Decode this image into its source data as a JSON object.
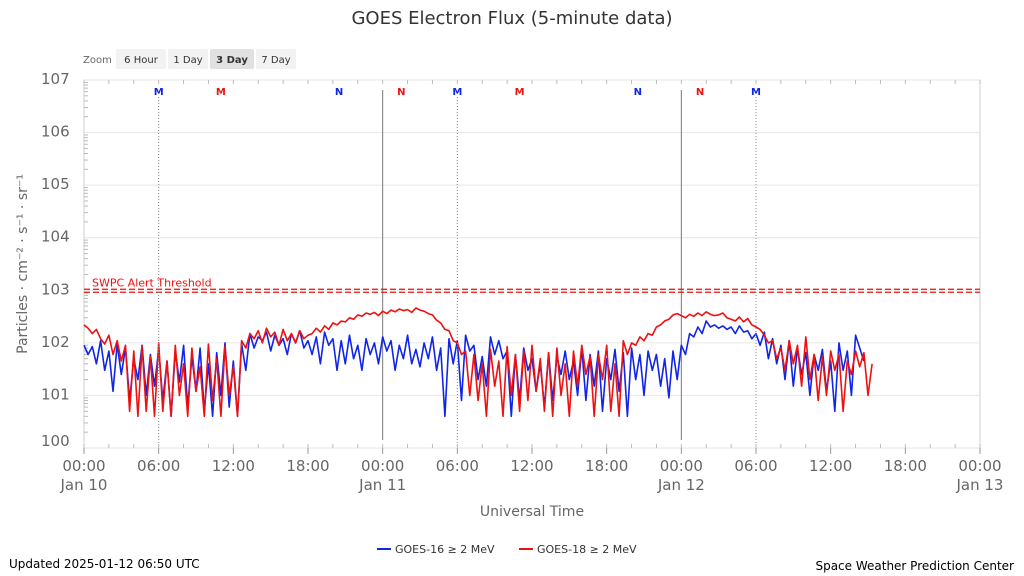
{
  "title": "GOES Electron Flux (5-minute data)",
  "zoom": {
    "label": "Zoom",
    "buttons": [
      "6 Hour",
      "1 Day",
      "3 Day",
      "7 Day"
    ],
    "active": "3 Day"
  },
  "footer": {
    "updated": "Updated 2025-01-12 06:50 UTC",
    "credit": "Space Weather Prediction Center"
  },
  "colors": {
    "goes16": "#1025e8",
    "goes18": "#ee1111",
    "threshold": "#ee1111"
  },
  "chart_data": {
    "type": "line",
    "title": "GOES Electron Flux (5-minute data)",
    "xlabel": "Universal Time",
    "ylabel": "Particles · cm⁻² · s⁻¹ · sr⁻¹",
    "y_scale": "log",
    "ylim": [
      1,
      10000000
    ],
    "y_tick_labels": [
      {
        "value": 1,
        "base": "10",
        "exp": "0"
      },
      {
        "value": 10,
        "base": "10",
        "exp": "1"
      },
      {
        "value": 100,
        "base": "10",
        "exp": "2"
      },
      {
        "value": 1000,
        "base": "10",
        "exp": "3"
      },
      {
        "value": 10000,
        "base": "10",
        "exp": "4"
      },
      {
        "value": 100000,
        "base": "10",
        "exp": "5"
      },
      {
        "value": 1000000,
        "base": "10",
        "exp": "6"
      },
      {
        "value": 10000000,
        "base": "10",
        "exp": "7"
      }
    ],
    "xlim": [
      "2025-01-10 00:00",
      "2025-01-13 00:00"
    ],
    "x_ticks": [
      {
        "t": "2025-01-10 00:00",
        "label": "00:00",
        "date": "Jan 10"
      },
      {
        "t": "2025-01-10 06:00",
        "label": "06:00",
        "date": ""
      },
      {
        "t": "2025-01-10 12:00",
        "label": "12:00",
        "date": ""
      },
      {
        "t": "2025-01-10 18:00",
        "label": "18:00",
        "date": ""
      },
      {
        "t": "2025-01-11 00:00",
        "label": "00:00",
        "date": "Jan 11"
      },
      {
        "t": "2025-01-11 06:00",
        "label": "06:00",
        "date": ""
      },
      {
        "t": "2025-01-11 12:00",
        "label": "12:00",
        "date": ""
      },
      {
        "t": "2025-01-11 18:00",
        "label": "18:00",
        "date": ""
      },
      {
        "t": "2025-01-12 00:00",
        "label": "00:00",
        "date": "Jan 12"
      },
      {
        "t": "2025-01-12 06:00",
        "label": "06:00",
        "date": ""
      },
      {
        "t": "2025-01-12 12:00",
        "label": "12:00",
        "date": ""
      },
      {
        "t": "2025-01-12 18:00",
        "label": "18:00",
        "date": ""
      },
      {
        "t": "2025-01-13 00:00",
        "label": "00:00",
        "date": "Jan 13"
      }
    ],
    "day_boundaries": [
      "2025-01-11 00:00",
      "2025-01-12 00:00"
    ],
    "threshold": {
      "value": 1000,
      "label": "SWPC Alert Threshold"
    },
    "markers": [
      {
        "t": "2025-01-10 06:00",
        "text": "M",
        "color": "#1025e8",
        "line": true
      },
      {
        "t": "2025-01-10 11:00",
        "text": "M",
        "color": "#ee1111",
        "line": false
      },
      {
        "t": "2025-01-10 20:30",
        "text": "N",
        "color": "#1025e8",
        "line": false
      },
      {
        "t": "2025-01-11 01:30",
        "text": "N",
        "color": "#ee1111",
        "line": false
      },
      {
        "t": "2025-01-11 06:00",
        "text": "M",
        "color": "#1025e8",
        "line": true
      },
      {
        "t": "2025-01-11 11:00",
        "text": "M",
        "color": "#ee1111",
        "line": false
      },
      {
        "t": "2025-01-11 20:30",
        "text": "N",
        "color": "#1025e8",
        "line": false
      },
      {
        "t": "2025-01-12 01:30",
        "text": "N",
        "color": "#ee1111",
        "line": false
      },
      {
        "t": "2025-01-12 06:00",
        "text": "M",
        "color": "#1025e8",
        "line": true
      }
    ],
    "series": [
      {
        "name": "GOES-16 ≥ 2 MeV",
        "color": "#1025e8",
        "start": "2025-01-10 00:00",
        "step_minutes": 20,
        "values": [
          90,
          60,
          85,
          40,
          110,
          30,
          70,
          12,
          95,
          25,
          80,
          8,
          50,
          20,
          90,
          10,
          60,
          15,
          75,
          8,
          45,
          4,
          70,
          18,
          90,
          6,
          55,
          12,
          80,
          5,
          40,
          4,
          65,
          10,
          100,
          6,
          45,
          4,
          95,
          30,
          150,
          80,
          130,
          110,
          160,
          70,
          140,
          90,
          120,
          60,
          150,
          100,
          170,
          80,
          110,
          60,
          130,
          40,
          160,
          90,
          120,
          30,
          110,
          40,
          140,
          50,
          90,
          30,
          120,
          60,
          100,
          40,
          130,
          70,
          110,
          30,
          90,
          50,
          140,
          40,
          75,
          35,
          100,
          50,
          130,
          30,
          80,
          4,
          120,
          40,
          110,
          8,
          140,
          70,
          90,
          20,
          55,
          15,
          130,
          60,
          110,
          50,
          70,
          4,
          60,
          8,
          80,
          30,
          50,
          12,
          40,
          6,
          65,
          8,
          55,
          25,
          70,
          20,
          45,
          10,
          80,
          8,
          60,
          15,
          70,
          5,
          50,
          20,
          75,
          12,
          65,
          4,
          80,
          20,
          60,
          10,
          70,
          30,
          60,
          15,
          50,
          9,
          70,
          20,
          90,
          60,
          150,
          130,
          200,
          150,
          260,
          200,
          220,
          190,
          210,
          180,
          200,
          150,
          210,
          160,
          170,
          120,
          150,
          90,
          160,
          50,
          120,
          40,
          90,
          20,
          110,
          15,
          80,
          25,
          65,
          10,
          60,
          30,
          75,
          12,
          45,
          5,
          100,
          30,
          70,
          10,
          140,
          80,
          45
        ]
      },
      {
        "name": "GOES-18 ≥ 2 MeV",
        "color": "#ee1111",
        "start": "2025-01-10 00:00",
        "step_minutes": 20,
        "values": [
          220,
          190,
          150,
          180,
          120,
          95,
          140,
          60,
          110,
          45,
          90,
          5,
          70,
          4,
          85,
          5,
          55,
          4,
          100,
          5,
          45,
          4,
          90,
          10,
          40,
          4,
          80,
          12,
          35,
          4,
          95,
          8,
          50,
          4,
          85,
          10,
          35,
          4,
          110,
          80,
          150,
          120,
          170,
          100,
          190,
          130,
          160,
          90,
          180,
          110,
          150,
          100,
          170,
          120,
          140,
          150,
          190,
          160,
          210,
          180,
          240,
          220,
          260,
          250,
          300,
          280,
          340,
          320,
          370,
          350,
          380,
          330,
          400,
          360,
          420,
          390,
          440,
          410,
          430,
          380,
          460,
          420,
          400,
          360,
          340,
          270,
          240,
          180,
          170,
          110,
          100,
          60,
          70,
          10,
          60,
          8,
          40,
          4,
          75,
          15,
          45,
          4,
          85,
          10,
          60,
          5,
          70,
          8,
          90,
          12,
          50,
          5,
          65,
          4,
          80,
          10,
          40,
          4,
          70,
          15,
          90,
          25,
          55,
          4,
          60,
          20,
          90,
          5,
          40,
          4,
          110,
          60,
          100,
          90,
          130,
          110,
          150,
          140,
          200,
          220,
          260,
          280,
          340,
          360,
          330,
          300,
          350,
          320,
          370,
          330,
          390,
          350,
          330,
          340,
          370,
          300,
          280,
          260,
          310,
          250,
          290,
          220,
          200,
          180,
          140,
          100,
          110,
          50,
          80,
          30,
          110,
          40,
          90,
          15,
          130,
          20,
          60,
          8,
          55,
          10,
          70,
          30,
          60,
          5,
          45,
          25,
          70,
          35,
          65,
          10,
          40
        ]
      }
    ]
  }
}
